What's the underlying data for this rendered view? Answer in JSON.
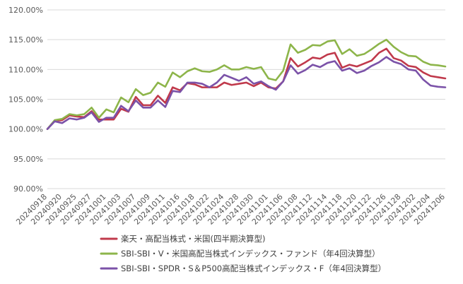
{
  "chart_data": {
    "type": "line",
    "title": "",
    "xlabel": "",
    "ylabel": "",
    "ylim": [
      90,
      120
    ],
    "y_ticks": [
      "90.00%",
      "95.00%",
      "100.00%",
      "105.00%",
      "110.00%",
      "115.00%",
      "120.00%"
    ],
    "grid": "horizontal",
    "legend_position": "bottom",
    "x_tick_labels": [
      "20240918",
      "20240920",
      "20240925",
      "20240927",
      "20241001",
      "20241003",
      "20241007",
      "20241009",
      "20241011",
      "20241016",
      "20241018",
      "20241022",
      "20241024",
      "20241028",
      "20241030",
      "20241101",
      "20241106",
      "20241108",
      "20241112",
      "20241114",
      "20241118",
      "20241120",
      "20241122",
      "20241126",
      "20241128",
      "20241202",
      "20241204",
      "20241206"
    ],
    "series": [
      {
        "name": "楽天・高配当株式・米国(四半期決算型)",
        "color": "#c0394b",
        "values": [
          100.0,
          101.4,
          101.5,
          102.3,
          102.1,
          102.0,
          103.0,
          101.6,
          101.6,
          101.6,
          103.4,
          102.9,
          105.4,
          104.0,
          104.0,
          105.6,
          104.4,
          107.0,
          106.5,
          107.7,
          107.5,
          107.0,
          107.0,
          107.0,
          107.8,
          107.4,
          107.6,
          107.8,
          107.2,
          107.8,
          107.0,
          106.8,
          108.0,
          111.9,
          110.5,
          111.2,
          112.0,
          111.8,
          112.5,
          112.8,
          110.3,
          110.8,
          110.5,
          111.0,
          111.5,
          112.8,
          113.5,
          111.9,
          111.5,
          110.6,
          110.4,
          109.5,
          108.9,
          108.7,
          108.5
        ]
      },
      {
        "name": "SBI-SBI・V・米国高配当株式インデックス・ファンド（年4回決算型）",
        "color": "#8db54a",
        "values": [
          100.0,
          101.5,
          101.7,
          102.5,
          102.3,
          102.5,
          103.6,
          101.9,
          103.3,
          102.8,
          105.3,
          104.5,
          106.7,
          105.7,
          106.1,
          107.8,
          107.1,
          109.5,
          108.7,
          109.7,
          110.2,
          109.7,
          109.6,
          110.0,
          110.7,
          110.0,
          110.0,
          110.4,
          110.1,
          110.4,
          108.5,
          108.2,
          109.8,
          114.2,
          112.8,
          113.3,
          114.1,
          114.0,
          114.7,
          114.9,
          112.6,
          113.4,
          112.3,
          112.6,
          113.4,
          114.3,
          115.0,
          113.8,
          112.9,
          112.3,
          112.2,
          111.3,
          110.8,
          110.7,
          110.5
        ]
      },
      {
        "name": "SBI-SBI・SPDR・S＆P500高配当株式インデックス・F（年4回決算型）",
        "color": "#7b52a8",
        "values": [
          100.0,
          101.3,
          101.0,
          101.8,
          101.6,
          101.9,
          102.8,
          101.2,
          101.9,
          101.9,
          103.9,
          103.0,
          104.8,
          103.6,
          103.6,
          104.8,
          103.7,
          106.4,
          106.2,
          107.8,
          107.8,
          107.6,
          107.0,
          107.8,
          109.1,
          108.6,
          108.1,
          108.7,
          107.6,
          108.0,
          107.2,
          106.6,
          108.0,
          110.7,
          109.3,
          109.9,
          110.8,
          110.4,
          111.1,
          111.4,
          109.8,
          110.2,
          109.4,
          109.8,
          110.6,
          111.2,
          112.1,
          111.3,
          110.9,
          110.0,
          109.8,
          108.3,
          107.3,
          107.1,
          107.0
        ]
      }
    ]
  }
}
